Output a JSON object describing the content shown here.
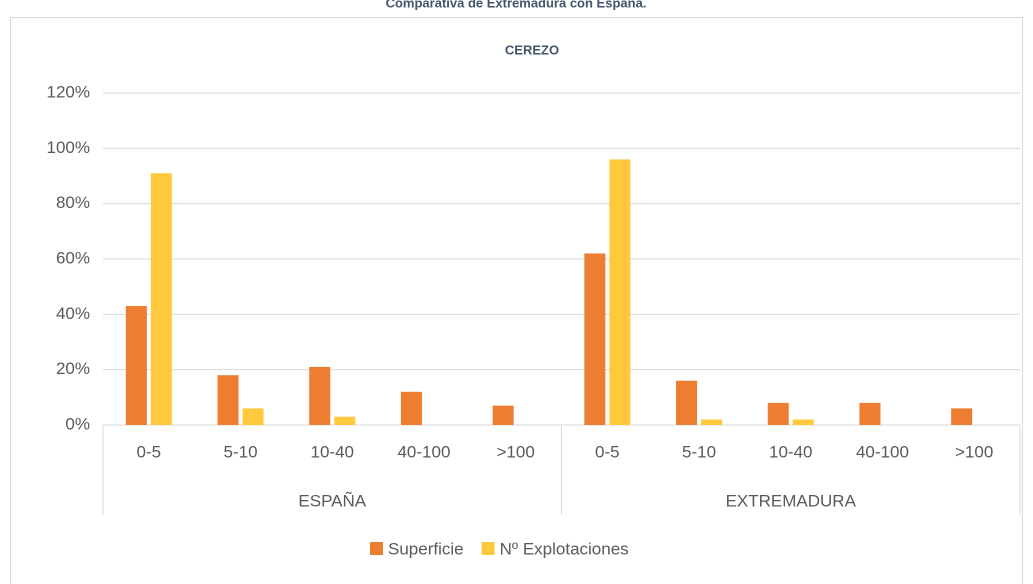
{
  "chart_data": {
    "type": "bar",
    "title": "Comparativa de Extremadura con España.",
    "subtitle": "CEREZO",
    "categories": [
      "0-5",
      "5-10",
      "10-40",
      "40-100",
      ">100",
      "0-5",
      "5-10",
      "10-40",
      "40-100",
      ">100"
    ],
    "groups": [
      "ESPAÑA",
      "EXTREMADURA"
    ],
    "series": [
      {
        "name": "Superficie",
        "color": "#ed7d31",
        "values": [
          43,
          18,
          21,
          12,
          7,
          62,
          16,
          8,
          8,
          6
        ]
      },
      {
        "name": "Nº Explotaciones",
        "color": "#ffc83d",
        "values": [
          91,
          6,
          3,
          0,
          0,
          96,
          2,
          2,
          0,
          0
        ]
      }
    ],
    "ylim": [
      0,
      120
    ],
    "yticks": [
      {
        "value": 0,
        "label": "0%"
      },
      {
        "value": 20,
        "label": "20%"
      },
      {
        "value": 40,
        "label": "40%"
      },
      {
        "value": 60,
        "label": "60%"
      },
      {
        "value": 80,
        "label": "80%"
      },
      {
        "value": 100,
        "label": "100%"
      },
      {
        "value": 120,
        "label": "120%"
      }
    ],
    "grid": true,
    "legend": "bottom"
  }
}
